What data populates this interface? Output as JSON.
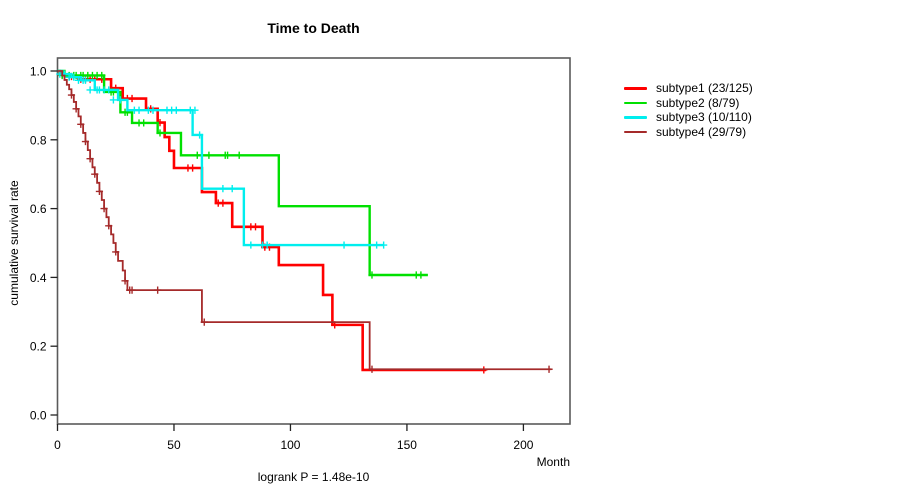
{
  "chart_data": {
    "type": "line",
    "variant": "kaplan-meier-step",
    "title": "Time to Death",
    "xlabel": "Month",
    "ylabel": "cumulative survival rate",
    "annotation": "logrank P = 1.48e-10",
    "xlim": [
      0,
      220
    ],
    "ylim": [
      0,
      1
    ],
    "xticks": [
      0,
      50,
      100,
      150,
      200
    ],
    "yticks": [
      0,
      0.2,
      0.4,
      0.6,
      0.8,
      1
    ],
    "grid": false,
    "legend_position": "right",
    "series": [
      {
        "name": "subtype1 (23/125)",
        "color": "#ff0000",
        "line_width": 2.6,
        "steps": [
          [
            0,
            1.0
          ],
          [
            1,
            0.99
          ],
          [
            4,
            0.984
          ],
          [
            9,
            0.976
          ],
          [
            23,
            0.95
          ],
          [
            28,
            0.92
          ],
          [
            38,
            0.89
          ],
          [
            43,
            0.85
          ],
          [
            46,
            0.808
          ],
          [
            48,
            0.768
          ],
          [
            50,
            0.718
          ],
          [
            62,
            0.648
          ],
          [
            68,
            0.616
          ],
          [
            75,
            0.547
          ],
          [
            88,
            0.488
          ],
          [
            95,
            0.436
          ],
          [
            114,
            0.349
          ],
          [
            118,
            0.262
          ],
          [
            131,
            0.131
          ],
          [
            184,
            0.131
          ]
        ],
        "censors": [
          [
            2,
            0.99
          ],
          [
            3,
            0.99
          ],
          [
            5,
            0.984
          ],
          [
            6,
            0.984
          ],
          [
            7,
            0.984
          ],
          [
            10,
            0.976
          ],
          [
            12,
            0.976
          ],
          [
            14,
            0.976
          ],
          [
            16,
            0.976
          ],
          [
            19,
            0.976
          ],
          [
            25,
            0.95
          ],
          [
            30,
            0.92
          ],
          [
            32,
            0.92
          ],
          [
            40,
            0.89
          ],
          [
            44,
            0.85
          ],
          [
            56,
            0.718
          ],
          [
            58,
            0.718
          ],
          [
            69,
            0.616
          ],
          [
            71,
            0.616
          ],
          [
            83,
            0.547
          ],
          [
            85,
            0.547
          ],
          [
            89,
            0.488
          ],
          [
            91,
            0.488
          ],
          [
            119,
            0.262
          ],
          [
            183,
            0.131
          ]
        ]
      },
      {
        "name": "subtype2 (8/79)",
        "color": "#00e000",
        "line_width": 2.4,
        "steps": [
          [
            0,
            1.0
          ],
          [
            3,
            0.987
          ],
          [
            20,
            0.939
          ],
          [
            27,
            0.88
          ],
          [
            32,
            0.849
          ],
          [
            43,
            0.82
          ],
          [
            53,
            0.755
          ],
          [
            95,
            0.607
          ],
          [
            134,
            0.407
          ],
          [
            159,
            0.407
          ]
        ],
        "censors": [
          [
            2,
            0.987
          ],
          [
            5,
            0.987
          ],
          [
            7,
            0.987
          ],
          [
            8,
            0.987
          ],
          [
            10,
            0.987
          ],
          [
            11,
            0.987
          ],
          [
            13,
            0.987
          ],
          [
            15,
            0.987
          ],
          [
            17,
            0.987
          ],
          [
            19,
            0.987
          ],
          [
            23,
            0.939
          ],
          [
            24,
            0.939
          ],
          [
            29,
            0.88
          ],
          [
            30,
            0.88
          ],
          [
            35,
            0.849
          ],
          [
            37,
            0.849
          ],
          [
            44,
            0.82
          ],
          [
            60,
            0.755
          ],
          [
            65,
            0.755
          ],
          [
            72,
            0.755
          ],
          [
            73,
            0.755
          ],
          [
            78,
            0.755
          ],
          [
            135,
            0.407
          ],
          [
            154,
            0.407
          ],
          [
            156,
            0.407
          ]
        ]
      },
      {
        "name": "subtype3 (10/110)",
        "color": "#00eeee",
        "line_width": 2.4,
        "steps": [
          [
            0,
            1.0
          ],
          [
            2,
            0.991
          ],
          [
            6,
            0.982
          ],
          [
            10,
            0.973
          ],
          [
            16,
            0.945
          ],
          [
            26,
            0.916
          ],
          [
            30,
            0.886
          ],
          [
            58,
            0.814
          ],
          [
            62,
            0.658
          ],
          [
            80,
            0.494
          ],
          [
            140,
            0.494
          ]
        ],
        "censors": [
          [
            1,
            0.991
          ],
          [
            3,
            0.991
          ],
          [
            5,
            0.982
          ],
          [
            7,
            0.982
          ],
          [
            9,
            0.973
          ],
          [
            11,
            0.973
          ],
          [
            12,
            0.973
          ],
          [
            14,
            0.945
          ],
          [
            17,
            0.945
          ],
          [
            18,
            0.945
          ],
          [
            20,
            0.945
          ],
          [
            22,
            0.945
          ],
          [
            24,
            0.916
          ],
          [
            27,
            0.916
          ],
          [
            33,
            0.886
          ],
          [
            35,
            0.886
          ],
          [
            39,
            0.886
          ],
          [
            41,
            0.886
          ],
          [
            47,
            0.886
          ],
          [
            49,
            0.886
          ],
          [
            51,
            0.886
          ],
          [
            57,
            0.886
          ],
          [
            59,
            0.886
          ],
          [
            61,
            0.814
          ],
          [
            71,
            0.658
          ],
          [
            75,
            0.658
          ],
          [
            83,
            0.494
          ],
          [
            88,
            0.494
          ],
          [
            90,
            0.494
          ],
          [
            123,
            0.494
          ],
          [
            137,
            0.494
          ],
          [
            140,
            0.494
          ]
        ]
      },
      {
        "name": "subtype4 (29/79)",
        "color": "#a52a2a",
        "line_width": 1.8,
        "steps": [
          [
            0,
            1.0
          ],
          [
            2,
            0.987
          ],
          [
            3,
            0.974
          ],
          [
            4,
            0.96
          ],
          [
            5,
            0.947
          ],
          [
            6,
            0.93
          ],
          [
            7,
            0.91
          ],
          [
            8,
            0.89
          ],
          [
            9,
            0.868
          ],
          [
            10,
            0.845
          ],
          [
            11,
            0.82
          ],
          [
            12,
            0.795
          ],
          [
            13,
            0.77
          ],
          [
            14,
            0.745
          ],
          [
            15,
            0.72
          ],
          [
            16,
            0.7
          ],
          [
            17,
            0.675
          ],
          [
            18,
            0.65
          ],
          [
            19,
            0.625
          ],
          [
            20,
            0.6
          ],
          [
            21,
            0.575
          ],
          [
            22,
            0.55
          ],
          [
            23,
            0.525
          ],
          [
            24,
            0.5
          ],
          [
            25,
            0.474
          ],
          [
            26,
            0.448
          ],
          [
            28,
            0.42
          ],
          [
            29,
            0.39
          ],
          [
            30,
            0.363
          ],
          [
            62,
            0.27
          ],
          [
            134,
            0.133
          ],
          [
            212,
            0.133
          ]
        ],
        "censors": [
          [
            6,
            0.93
          ],
          [
            8,
            0.89
          ],
          [
            10,
            0.845
          ],
          [
            12,
            0.795
          ],
          [
            14,
            0.745
          ],
          [
            16,
            0.7
          ],
          [
            18,
            0.65
          ],
          [
            20,
            0.6
          ],
          [
            22,
            0.55
          ],
          [
            25,
            0.474
          ],
          [
            29,
            0.39
          ],
          [
            31,
            0.363
          ],
          [
            32,
            0.363
          ],
          [
            43,
            0.363
          ],
          [
            63,
            0.27
          ],
          [
            135,
            0.133
          ],
          [
            211,
            0.133
          ]
        ]
      }
    ]
  }
}
